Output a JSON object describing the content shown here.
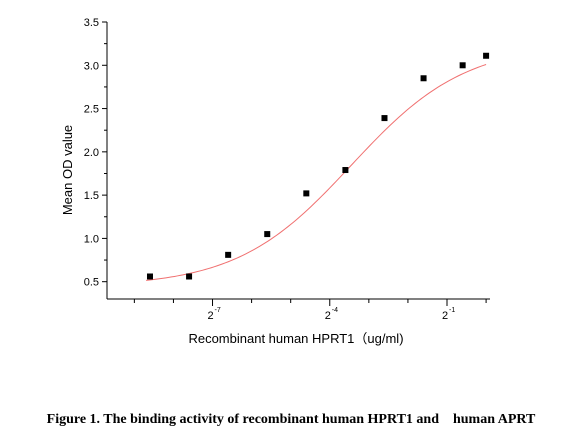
{
  "chart_data": {
    "type": "scatter",
    "xlabel": "Recombinant human HPRT1（ug/ml)",
    "ylabel": "Mean OD value",
    "x_scale": "log2",
    "xlim_log2": [
      -9.7,
      0.1
    ],
    "ylim": [
      0.3,
      3.5
    ],
    "y_ticks": [
      {
        "value": 0.5,
        "label": "0.5"
      },
      {
        "value": 1.0,
        "label": "1.0"
      },
      {
        "value": 1.5,
        "label": "1.5"
      },
      {
        "value": 2.0,
        "label": "2.0"
      },
      {
        "value": 2.5,
        "label": "2.5"
      },
      {
        "value": 3.0,
        "label": "3.0"
      },
      {
        "value": 3.5,
        "label": "3.5"
      }
    ],
    "x_major_ticks": [
      {
        "exp": -7,
        "base": "2",
        "power": "-7"
      },
      {
        "exp": -4,
        "base": "2",
        "power": "-4"
      },
      {
        "exp": -1,
        "base": "2",
        "power": "-1"
      }
    ],
    "x_minor_ticks": [
      -9,
      -8,
      -6,
      -5,
      -3,
      -2,
      0
    ],
    "points": [
      {
        "x_log2": -8.6,
        "y": 0.56
      },
      {
        "x_log2": -7.6,
        "y": 0.56
      },
      {
        "x_log2": -6.6,
        "y": 0.81
      },
      {
        "x_log2": -5.6,
        "y": 1.05
      },
      {
        "x_log2": -4.6,
        "y": 1.52
      },
      {
        "x_log2": -3.6,
        "y": 1.79
      },
      {
        "x_log2": -2.6,
        "y": 2.39
      },
      {
        "x_log2": -1.6,
        "y": 2.85
      },
      {
        "x_log2": -0.6,
        "y": 3.0
      },
      {
        "x_log2": 0.0,
        "y": 3.11
      }
    ],
    "fit": {
      "model": "4PL",
      "bottom": 0.44,
      "top": 3.25,
      "ec50_log2": -3.45,
      "slope": 0.3,
      "color": "#f07070"
    },
    "marker_color": "#000000",
    "grid": false
  },
  "caption": "Figure 1. The binding activity of recombinant human HPRT1 and    human APRT"
}
